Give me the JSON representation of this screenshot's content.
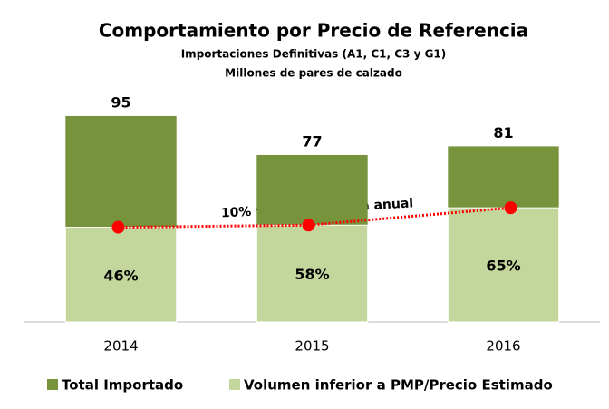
{
  "chart_data": {
    "type": "bar",
    "title": "Comportamiento por Precio de Referencia",
    "subtitle": "Importaciones Definitivas (A1, C1, C3 y G1)",
    "unit_label": "Millones de pares de calzado",
    "annotation": "10% variación media anual",
    "categories": [
      "2014",
      "2015",
      "2016"
    ],
    "series": [
      {
        "name": "Total Importado",
        "color": "#77933c",
        "values": [
          95,
          77,
          81
        ]
      },
      {
        "name": "Volumen inferior a PMP/Precio Estimado",
        "color": "#c3d69b",
        "values": [
          46,
          58,
          65
        ],
        "value_labels": [
          "46%",
          "58%",
          "65%"
        ]
      }
    ],
    "trend_color": "#ff0000",
    "ylim": [
      0,
      100
    ]
  }
}
